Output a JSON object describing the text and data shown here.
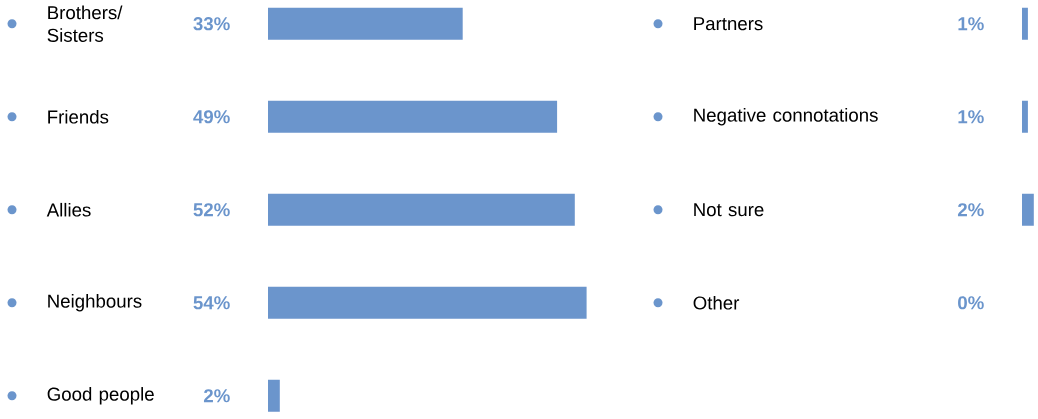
{
  "chart_data": [
    {
      "type": "bar",
      "orientation": "horizontal",
      "color": "#6b95cc",
      "categories": [
        "Brothers/ Sisters",
        "Friends",
        "Allies",
        "Neighbours",
        "Good people"
      ],
      "values": [
        33,
        49,
        52,
        54,
        2
      ],
      "value_labels": [
        "33%",
        "49%",
        "52%",
        "54%",
        "2%"
      ]
    },
    {
      "type": "bar",
      "orientation": "horizontal",
      "color": "#6b95cc",
      "categories": [
        "Partners",
        "Negative connotations",
        "Not sure",
        "Other"
      ],
      "values": [
        1,
        1,
        2,
        0
      ],
      "value_labels": [
        "1%",
        "1%",
        "2%",
        "0%"
      ]
    }
  ]
}
